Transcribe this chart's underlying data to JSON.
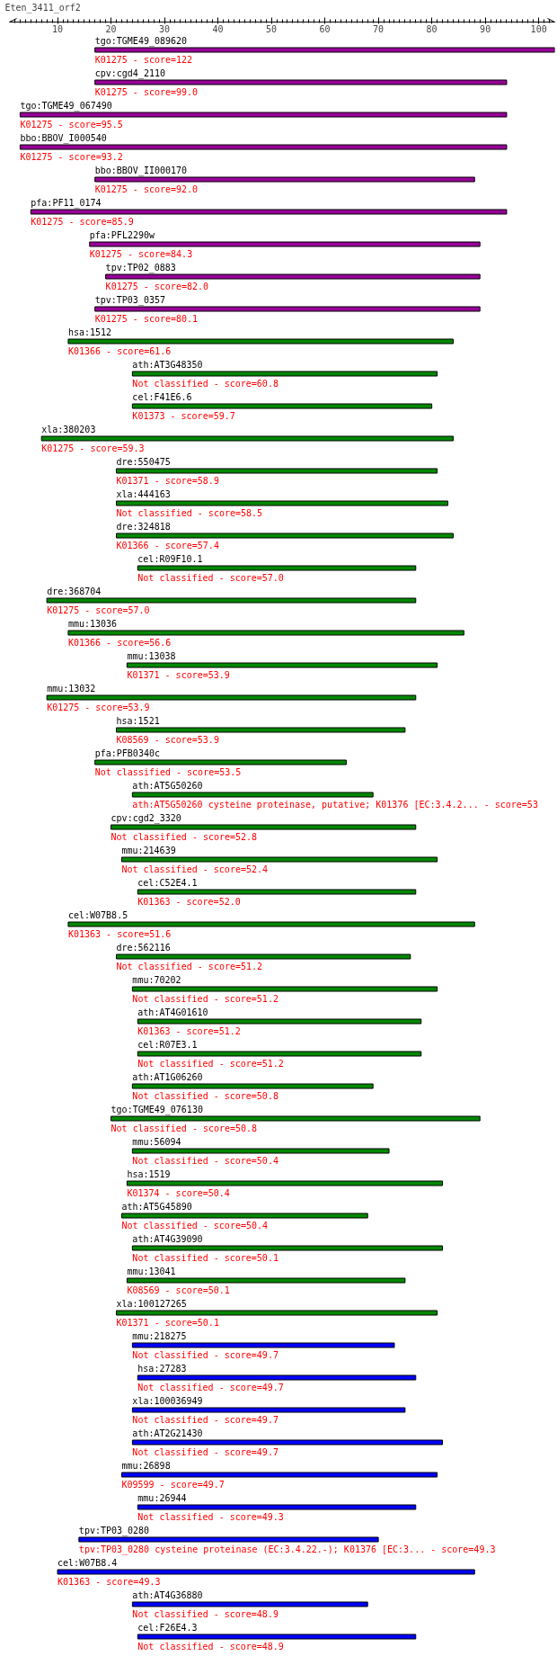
{
  "chart_data": {
    "type": "bar",
    "orientation": "horizontal",
    "title": "Eten_3411_orf2",
    "categories": [
      "tgo:TGME49_089620",
      "cpv:cgd4_2110",
      "tgo:TGME49_067490",
      "bbo:BBOV_I000540",
      "bbo:BBOV_II000170",
      "pfa:PF11_0174",
      "pfa:PFL2290w",
      "tpv:TP02_0883",
      "tpv:TP03_0357",
      "hsa:1512",
      "ath:AT3G48350",
      "cel:F41E6.6",
      "xla:380203",
      "dre:550475",
      "xla:444163",
      "dre:324818",
      "cel:R09F10.1",
      "dre:368704",
      "mmu:13036",
      "mmu:13038",
      "mmu:13032",
      "hsa:1521",
      "pfa:PFB0340c",
      "ath:AT5G50260",
      "cpv:cgd2_3320",
      "mmu:214639",
      "cel:C52E4.1",
      "cel:W07B8.5",
      "dre:562116",
      "mmu:70202",
      "ath:AT4G01610",
      "cel:R07E3.1",
      "ath:AT1G06260",
      "tgo:TGME49_076130",
      "mmu:56094",
      "hsa:1519",
      "ath:AT5G45890",
      "ath:AT4G39090",
      "mmu:13041",
      "xla:100127265",
      "mmu:218275",
      "hsa:27283",
      "xla:100036949",
      "ath:AT2G21430",
      "mmu:26898",
      "mmu:26944",
      "tpv:TP03_0280",
      "cel:W07B8.4",
      "ath:AT4G36880",
      "cel:F26E4.3"
    ],
    "base": [
      17,
      17,
      3,
      3,
      17,
      5,
      16,
      19,
      17,
      12,
      24,
      24,
      7,
      21,
      21,
      21,
      25,
      8,
      12,
      23,
      8,
      21,
      17,
      24,
      20,
      22,
      25,
      12,
      21,
      24,
      25,
      25,
      24,
      20,
      24,
      23,
      22,
      24,
      23,
      21,
      24,
      25,
      24,
      24,
      22,
      25,
      14,
      10,
      24,
      25
    ],
    "values": [
      86,
      77,
      91,
      91,
      71,
      89,
      73,
      70,
      72,
      72,
      57,
      56,
      77,
      60,
      62,
      63,
      52,
      69,
      74,
      58,
      69,
      54,
      47,
      45,
      57,
      59,
      52,
      76,
      55,
      57,
      53,
      53,
      45,
      69,
      48,
      59,
      46,
      58,
      52,
      60,
      49,
      52,
      51,
      58,
      59,
      52,
      56,
      78,
      44,
      52
    ],
    "colors": [
      "#990099",
      "#990099",
      "#990099",
      "#990099",
      "#990099",
      "#990099",
      "#990099",
      "#990099",
      "#990099",
      "#008800",
      "#008800",
      "#008800",
      "#008800",
      "#008800",
      "#008800",
      "#008800",
      "#008800",
      "#008800",
      "#008800",
      "#008800",
      "#008800",
      "#008800",
      "#008800",
      "#008800",
      "#008800",
      "#008800",
      "#008800",
      "#008800",
      "#008800",
      "#008800",
      "#008800",
      "#008800",
      "#008800",
      "#008800",
      "#008800",
      "#008800",
      "#008800",
      "#008800",
      "#008800",
      "#008800",
      "#0000ff",
      "#0000ff",
      "#0000ff",
      "#0000ff",
      "#0000ff",
      "#0000ff",
      "#0000ff",
      "#0000ff",
      "#0000ff",
      "#0000ff"
    ],
    "annotations": [
      "K01275 - score=122",
      "K01275 - score=99.0",
      "K01275 - score=95.5",
      "K01275 - score=93.2",
      "K01275 - score=92.0",
      "K01275 - score=85.9",
      "K01275 - score=84.3",
      "K01275 - score=82.0",
      "K01275 - score=80.1",
      "K01366 - score=61.6",
      "Not classified - score=60.8",
      "K01373 - score=59.7",
      "K01275 - score=59.3",
      "K01371 - score=58.9",
      "Not classified - score=58.5",
      "K01366 - score=57.4",
      "Not classified - score=57.0",
      "K01275 - score=57.0",
      "K01366 - score=56.6",
      "K01371 - score=53.9",
      "K01275 - score=53.9",
      "K08569 - score=53.9",
      "Not classified - score=53.5",
      "ath:AT5G50260  cysteine proteinase, putative; K01376  [EC:3.4.2... - score=53",
      "Not classified - score=52.8",
      "Not classified - score=52.4",
      "K01363 - score=52.0",
      "K01363 - score=51.6",
      "Not classified - score=51.2",
      "Not classified - score=51.2",
      "K01363 - score=51.2",
      "Not classified - score=51.2",
      "Not classified - score=50.8",
      "Not classified - score=50.8",
      "Not classified - score=50.4",
      "K01374 - score=50.4",
      "Not classified - score=50.4",
      "Not classified - score=50.1",
      "K08569 - score=50.1",
      "K01371 - score=50.1",
      "Not classified - score=49.7",
      "Not classified - score=49.7",
      "Not classified - score=49.7",
      "Not classified - score=49.7",
      "K09599 - score=49.7",
      "Not classified - score=49.3",
      "tpv:TP03_0280  cysteine proteinase (EC:3.4.22.-); K01376  [EC:3... - score=49.3",
      "K01363 - score=49.3",
      "Not classified - score=48.9",
      "Not classified - score=48.9"
    ],
    "xlim": [
      1,
      103
    ],
    "xticks": [
      {
        "value": 2,
        "label": null
      },
      {
        "value": 3,
        "label": null
      },
      {
        "value": 4,
        "label": null
      },
      {
        "value": 5,
        "label": null
      },
      {
        "value": 6,
        "label": null
      },
      {
        "value": 7,
        "label": null
      },
      {
        "value": 8,
        "label": null
      },
      {
        "value": 9,
        "label": null
      },
      10,
      {
        "value": 11,
        "label": null
      },
      {
        "value": 12,
        "label": null
      },
      {
        "value": 13,
        "label": null
      },
      {
        "value": 14,
        "label": null
      },
      {
        "value": 15,
        "label": null
      },
      {
        "value": 16,
        "label": null
      },
      {
        "value": 17,
        "label": null
      },
      {
        "value": 18,
        "label": null
      },
      {
        "value": 19,
        "label": null
      },
      20,
      {
        "value": 21,
        "label": null
      },
      {
        "value": 22,
        "label": null
      },
      {
        "value": 23,
        "label": null
      },
      {
        "value": 24,
        "label": null
      },
      {
        "value": 25,
        "label": null
      },
      {
        "value": 26,
        "label": null
      },
      {
        "value": 27,
        "label": null
      },
      {
        "value": 28,
        "label": null
      },
      {
        "value": 29,
        "label": null
      },
      30,
      {
        "value": 31,
        "label": null
      },
      {
        "value": 32,
        "label": null
      },
      {
        "value": 33,
        "label": null
      },
      {
        "value": 34,
        "label": null
      },
      {
        "value": 35,
        "label": null
      },
      {
        "value": 36,
        "label": null
      },
      {
        "value": 37,
        "label": null
      },
      {
        "value": 38,
        "label": null
      },
      {
        "value": 39,
        "label": null
      },
      40,
      {
        "value": 41,
        "label": null
      },
      {
        "value": 42,
        "label": null
      },
      {
        "value": 43,
        "label": null
      },
      {
        "value": 44,
        "label": null
      },
      {
        "value": 45,
        "label": null
      },
      {
        "value": 46,
        "label": null
      },
      {
        "value": 47,
        "label": null
      },
      {
        "value": 48,
        "label": null
      },
      {
        "value": 49,
        "label": null
      },
      50,
      {
        "value": 51,
        "label": null
      },
      {
        "value": 52,
        "label": null
      },
      {
        "value": 53,
        "label": null
      },
      {
        "value": 54,
        "label": null
      },
      {
        "value": 55,
        "label": null
      },
      {
        "value": 56,
        "label": null
      },
      {
        "value": 57,
        "label": null
      },
      {
        "value": 58,
        "label": null
      },
      {
        "value": 59,
        "label": null
      },
      60,
      {
        "value": 61,
        "label": null
      },
      {
        "value": 62,
        "label": null
      },
      {
        "value": 63,
        "label": null
      },
      {
        "value": 64,
        "label": null
      },
      {
        "value": 65,
        "label": null
      },
      {
        "value": 66,
        "label": null
      },
      {
        "value": 67,
        "label": null
      },
      {
        "value": 68,
        "label": null
      },
      {
        "value": 69,
        "label": null
      },
      70,
      {
        "value": 71,
        "label": null
      },
      {
        "value": 72,
        "label": null
      },
      {
        "value": 73,
        "label": null
      },
      {
        "value": 74,
        "label": null
      },
      {
        "value": 75,
        "label": null
      },
      {
        "value": 76,
        "label": null
      },
      {
        "value": 77,
        "label": null
      },
      {
        "value": 78,
        "label": null
      },
      {
        "value": 79,
        "label": null
      },
      80,
      {
        "value": 81,
        "label": null
      },
      {
        "value": 82,
        "label": null
      },
      {
        "value": 83,
        "label": null
      },
      {
        "value": 84,
        "label": null
      },
      {
        "value": 85,
        "label": null
      },
      {
        "value": 86,
        "label": null
      },
      {
        "value": 87,
        "label": null
      },
      {
        "value": 88,
        "label": null
      },
      {
        "value": 89,
        "label": null
      },
      90,
      {
        "value": 91,
        "label": null
      },
      {
        "value": 92,
        "label": null
      },
      {
        "value": 93,
        "label": null
      },
      {
        "value": 94,
        "label": null
      },
      {
        "value": 95,
        "label": null
      },
      {
        "value": 96,
        "label": null
      },
      {
        "value": 97,
        "label": null
      },
      {
        "value": 98,
        "label": null
      },
      {
        "value": 99,
        "label": null
      },
      100,
      {
        "value": 101,
        "label": null
      },
      {
        "value": 102,
        "label": null
      }
    ]
  }
}
